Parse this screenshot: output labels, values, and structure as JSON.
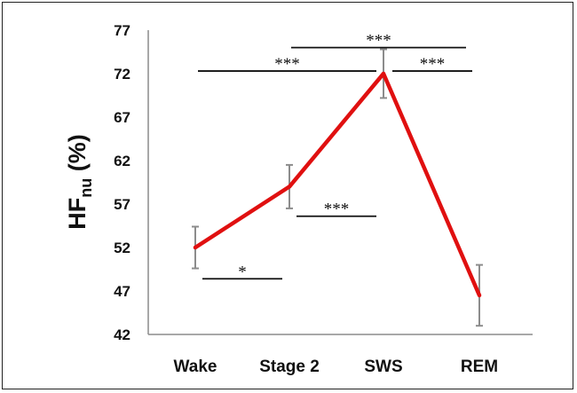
{
  "chart_data": {
    "type": "line",
    "title": "",
    "xlabel": "",
    "ylabel": {
      "main": "HF",
      "subscript": "nu",
      "suffix": " (%)"
    },
    "categories": [
      "Wake",
      "Stage 2",
      "SWS",
      "REM"
    ],
    "series": [
      {
        "values": [
          52,
          59,
          72,
          46.5
        ],
        "error": [
          2.4,
          2.5,
          2.8,
          3.5
        ],
        "color": "#e01010"
      }
    ],
    "ylim": [
      42,
      77
    ],
    "yticks": [
      42,
      47,
      52,
      57,
      62,
      67,
      72,
      77
    ],
    "grid": false,
    "legend": "none",
    "annotations": [
      {
        "text": "*",
        "between": [
          "Wake",
          "Stage 2"
        ],
        "y": 48.4
      },
      {
        "text": "***",
        "between": [
          "Stage 2",
          "SWS"
        ],
        "y": 55.6
      },
      {
        "text": "***",
        "between": [
          "Wake",
          "SWS"
        ],
        "y": 72.3
      },
      {
        "text": "***",
        "between": [
          "SWS",
          "REM"
        ],
        "y": 72.3
      },
      {
        "text": "***",
        "between": [
          "Stage 2",
          "REM"
        ],
        "y": 75.0
      }
    ]
  }
}
